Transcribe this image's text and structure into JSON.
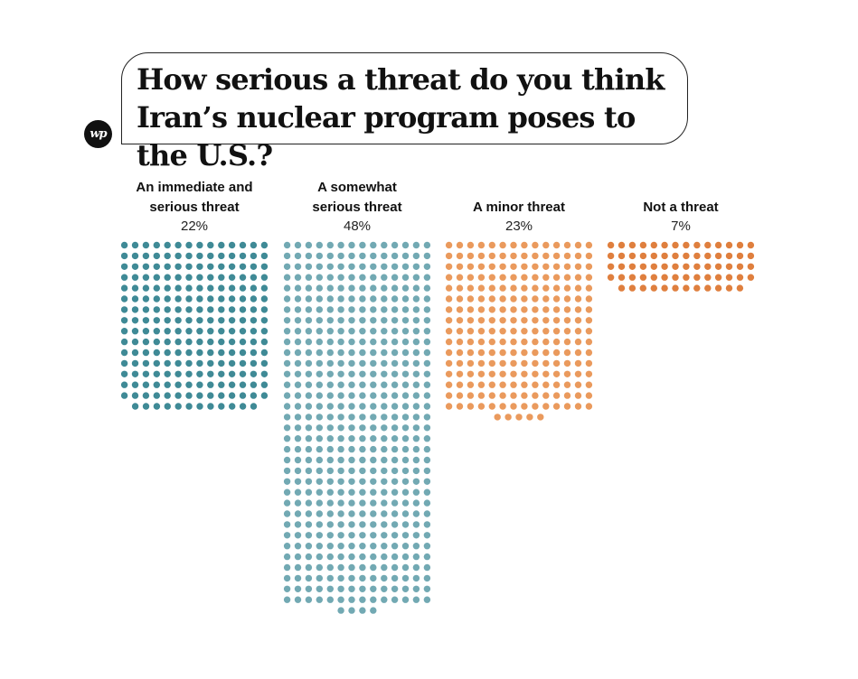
{
  "logo_text": "wp",
  "chart_data": {
    "type": "waffle",
    "title": "How serious a threat do you think Iran’s nuclear program poses to the U.S.?",
    "categories": [
      "An immediate and serious threat",
      "A somewhat serious threat",
      "A minor threat",
      "Not a threat"
    ],
    "label_lines": [
      [
        "An immediate and",
        "serious threat"
      ],
      [
        "A somewhat",
        "serious threat"
      ],
      [
        "A minor threat"
      ],
      [
        "Not a threat"
      ]
    ],
    "values": [
      22,
      48,
      23,
      7
    ],
    "value_labels": [
      "22%",
      "48%",
      "23%",
      "7%"
    ],
    "unit_dots": [
      222,
      480,
      229,
      68
    ],
    "colors": [
      "#3f8a96",
      "#72a9b3",
      "#ea9a5d",
      "#df7f3e"
    ]
  }
}
